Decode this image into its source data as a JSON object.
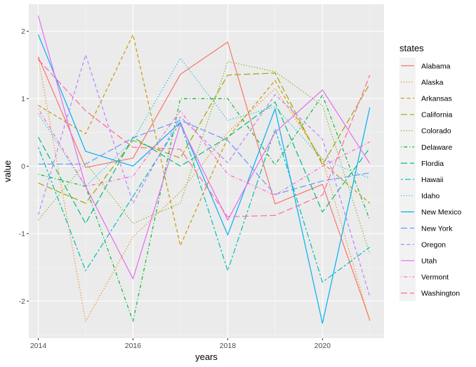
{
  "chart_data": {
    "type": "line",
    "title": "",
    "xlabel": "years",
    "ylabel": "value",
    "xlim": [
      2013.8,
      2021.3
    ],
    "ylim": [
      -2.55,
      2.4
    ],
    "x_ticks": [
      2014,
      2016,
      2018,
      2020
    ],
    "y_ticks": [
      -2,
      -1,
      0,
      1,
      2
    ],
    "grid": true,
    "legend": {
      "title": "states",
      "position": "right"
    },
    "x": [
      2014,
      2015,
      2016,
      2017,
      2018,
      2019,
      2020,
      2021
    ],
    "series": [
      {
        "name": "Alabama",
        "color": "#F8766D",
        "dash": "solid",
        "values": [
          1.62,
          -0.02,
          0.12,
          1.36,
          1.84,
          -0.56,
          -0.27,
          -2.28
        ]
      },
      {
        "name": "Alaska",
        "color": "#E58700",
        "dash": "dotted",
        "values": [
          1.6,
          -2.3,
          -1.05,
          -0.38,
          0.5,
          1.15,
          0.1,
          -2.3
        ]
      },
      {
        "name": "Arkansas",
        "color": "#C99800",
        "dash": "dashed",
        "values": [
          0.9,
          0.48,
          1.95,
          -1.18,
          0.42,
          1.27,
          0.05,
          -0.55
        ]
      },
      {
        "name": "California",
        "color": "#A3A500",
        "dash": "longdash",
        "values": [
          -0.25,
          -0.55,
          0.38,
          0.12,
          1.35,
          1.38,
          0.02,
          1.22
        ]
      },
      {
        "name": "Colorado",
        "color": "#6BB100",
        "dash": "dotted",
        "values": [
          -0.8,
          0.05,
          -0.85,
          -0.55,
          1.55,
          1.4,
          0.9,
          -1.3
        ]
      },
      {
        "name": "Delaware",
        "color": "#00BA38",
        "dash": "dotdash",
        "values": [
          -0.12,
          -0.3,
          -2.3,
          1.0,
          1.0,
          0.02,
          1.05,
          -0.8
        ]
      },
      {
        "name": "Flordia",
        "color": "#00BF7D",
        "dash": "longdash",
        "values": [
          0.43,
          -0.85,
          0.43,
          0.0,
          0.43,
          0.95,
          -0.68,
          0.27
        ]
      },
      {
        "name": "Hawaii",
        "color": "#00C0AF",
        "dash": "twodash",
        "values": [
          0.28,
          -1.55,
          -0.45,
          0.65,
          -1.55,
          0.55,
          -1.72,
          -1.2
        ]
      },
      {
        "name": "Idaho",
        "color": "#00BCD8",
        "dash": "dotted",
        "values": [
          0.78,
          -0.3,
          0.38,
          1.6,
          0.68,
          0.88,
          0.1,
          -0.18
        ]
      },
      {
        "name": "New Mexico",
        "color": "#00B0F6",
        "dash": "solid",
        "values": [
          1.95,
          0.22,
          0.0,
          0.65,
          -1.02,
          0.85,
          -2.33,
          0.87
        ]
      },
      {
        "name": "New York",
        "color": "#619CFF",
        "dash": "longdash",
        "values": [
          0.03,
          0.03,
          0.42,
          0.68,
          0.38,
          -0.42,
          -0.22,
          -0.1
        ]
      },
      {
        "name": "Oregon",
        "color": "#B983FF",
        "dash": "dashed",
        "values": [
          -0.72,
          1.65,
          -0.55,
          0.73,
          0.05,
          1.06,
          0.4,
          -1.93
        ]
      },
      {
        "name": "Utah",
        "color": "#E76BF3",
        "dash": "solid",
        "values": [
          2.23,
          -0.3,
          -1.67,
          0.62,
          -0.8,
          0.5,
          1.13,
          0.04
        ]
      },
      {
        "name": "Vermont",
        "color": "#FD61D1",
        "dash": "dotdash",
        "values": [
          0.85,
          -0.3,
          -0.15,
          0.82,
          -0.12,
          -0.43,
          0.0,
          0.36
        ]
      },
      {
        "name": "Washington",
        "color": "#FF67A4",
        "dash": "longdash",
        "values": [
          1.58,
          0.82,
          0.28,
          0.25,
          -0.75,
          -0.73,
          -0.43,
          1.35
        ]
      }
    ]
  }
}
